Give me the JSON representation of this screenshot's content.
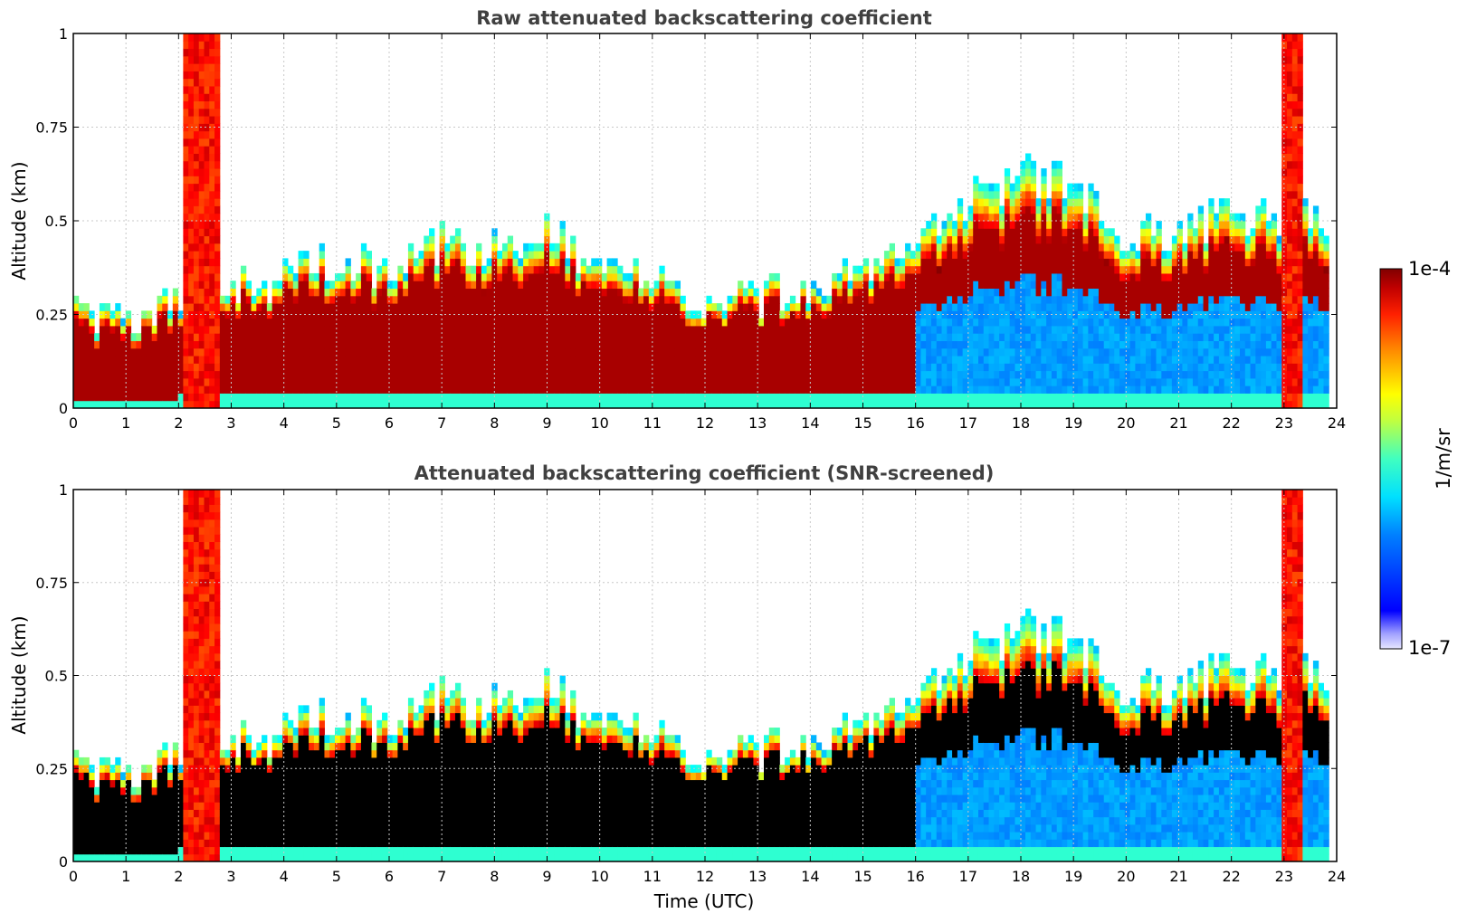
{
  "chart_data": [
    {
      "type": "heatmap",
      "title": "Raw attenuated backscattering coefficient",
      "xlabel": "",
      "ylabel": "Altitude (km)",
      "xlim": [
        0,
        24
      ],
      "ylim": [
        0,
        1
      ],
      "x_ticks": [
        "0",
        "1",
        "2",
        "3",
        "4",
        "5",
        "6",
        "7",
        "8",
        "9",
        "10",
        "11",
        "12",
        "13",
        "14",
        "15",
        "16",
        "17",
        "18",
        "19",
        "20",
        "21",
        "22",
        "23",
        "24"
      ],
      "y_ticks": [
        "0",
        "0.25",
        "0.5",
        "0.75",
        "1"
      ],
      "y_tick_values": [
        0,
        0.25,
        0.5,
        0.75,
        1
      ],
      "grid": true,
      "screened": false,
      "layer_top_km": [
        [
          0,
          0.27
        ],
        [
          1,
          0.24
        ],
        [
          2,
          0.3
        ],
        [
          3,
          0.32
        ],
        [
          4,
          0.35
        ],
        [
          5,
          0.4
        ],
        [
          6,
          0.38
        ],
        [
          7,
          0.45
        ],
        [
          8,
          0.42
        ],
        [
          9,
          0.48
        ],
        [
          10,
          0.38
        ],
        [
          11,
          0.33
        ],
        [
          12,
          0.28
        ],
        [
          13,
          0.3
        ],
        [
          14,
          0.33
        ],
        [
          15,
          0.36
        ],
        [
          16,
          0.42
        ],
        [
          17,
          0.55
        ],
        [
          18,
          0.62
        ],
        [
          19,
          0.6
        ],
        [
          20,
          0.45
        ],
        [
          21,
          0.48
        ],
        [
          22,
          0.52
        ],
        [
          23,
          0.5
        ],
        [
          24,
          0.5
        ]
      ]
    },
    {
      "type": "heatmap",
      "title": "Attenuated backscattering coefficient (SNR-screened)",
      "xlabel": "Time (UTC)",
      "ylabel": "Altitude (km)",
      "xlim": [
        0,
        24
      ],
      "ylim": [
        0,
        1
      ],
      "x_ticks": [
        "0",
        "1",
        "2",
        "3",
        "4",
        "5",
        "6",
        "7",
        "8",
        "9",
        "10",
        "11",
        "12",
        "13",
        "14",
        "15",
        "16",
        "17",
        "18",
        "19",
        "20",
        "21",
        "22",
        "23",
        "24"
      ],
      "y_ticks": [
        "0",
        "0.25",
        "0.5",
        "0.75",
        "1"
      ],
      "y_tick_values": [
        0,
        0.25,
        0.5,
        0.75,
        1
      ],
      "grid": true,
      "screened": true,
      "layer_top_km": [
        [
          0,
          0.27
        ],
        [
          1,
          0.24
        ],
        [
          2,
          0.3
        ],
        [
          3,
          0.32
        ],
        [
          4,
          0.35
        ],
        [
          5,
          0.4
        ],
        [
          6,
          0.38
        ],
        [
          7,
          0.45
        ],
        [
          8,
          0.42
        ],
        [
          9,
          0.48
        ],
        [
          10,
          0.38
        ],
        [
          11,
          0.33
        ],
        [
          12,
          0.28
        ],
        [
          13,
          0.3
        ],
        [
          14,
          0.33
        ],
        [
          15,
          0.36
        ],
        [
          16,
          0.42
        ],
        [
          17,
          0.55
        ],
        [
          18,
          0.62
        ],
        [
          19,
          0.6
        ],
        [
          20,
          0.45
        ],
        [
          21,
          0.48
        ],
        [
          22,
          0.52
        ],
        [
          23,
          0.5
        ],
        [
          24,
          0.5
        ]
      ]
    }
  ],
  "colorbar": {
    "label": "1/m/sr",
    "max_label": "1e-4",
    "min_label": "1e-7",
    "colormap": "jet"
  },
  "colors": {
    "screened": "#000000",
    "grid": "#c8c8c8",
    "title": "#404040"
  }
}
